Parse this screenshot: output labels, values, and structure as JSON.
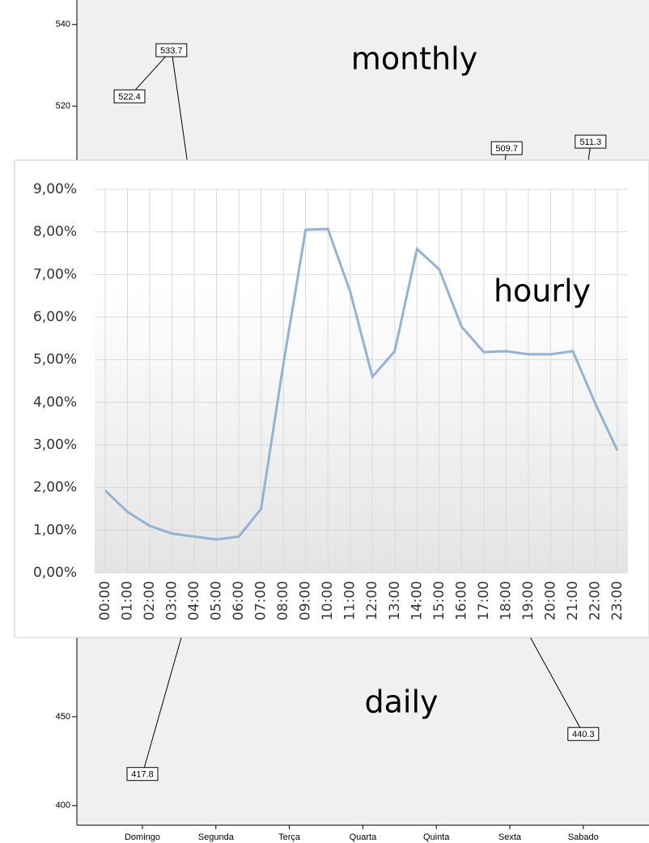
{
  "chart_data": [
    {
      "type": "line",
      "title": "monthly",
      "color": "#000000",
      "values": [
        522.4,
        533.7,
        null,
        null,
        null,
        null,
        null,
        null,
        null,
        509.7,
        null,
        511.3
      ],
      "ylim": [
        480,
        546
      ],
      "yticks": [
        520,
        540
      ]
    },
    {
      "type": "line",
      "title": "hourly",
      "color": "#93b3d3",
      "grid": true,
      "categories": [
        "00:00",
        "01:00",
        "02:00",
        "03:00",
        "04:00",
        "05:00",
        "06:00",
        "07:00",
        "08:00",
        "09:00",
        "10:00",
        "11:00",
        "12:00",
        "13:00",
        "14:00",
        "15:00",
        "16:00",
        "17:00",
        "18:00",
        "19:00",
        "20:00",
        "21:00",
        "22:00",
        "23:00"
      ],
      "values": [
        1.93,
        1.43,
        1.1,
        0.92,
        0.85,
        0.78,
        0.85,
        1.5,
        4.9,
        8.05,
        8.07,
        6.6,
        4.6,
        5.2,
        7.6,
        7.12,
        5.78,
        5.18,
        5.2,
        5.13,
        5.13,
        5.2,
        3.98,
        2.87
      ],
      "ylim": [
        0,
        9
      ],
      "yticks": [
        {
          "value": 0,
          "label": "0,00%"
        },
        {
          "value": 1,
          "label": "1,00%"
        },
        {
          "value": 2,
          "label": "2,00%"
        },
        {
          "value": 3,
          "label": "3,00%"
        },
        {
          "value": 4,
          "label": "4,00%"
        },
        {
          "value": 5,
          "label": "5,00%"
        },
        {
          "value": 6,
          "label": "6,00%"
        },
        {
          "value": 7,
          "label": "7,00%"
        },
        {
          "value": 8,
          "label": "8,00%"
        },
        {
          "value": 9,
          "label": "9,00%"
        }
      ]
    },
    {
      "type": "line",
      "title": "daily",
      "color": "#000000",
      "categories": [
        "Domingo",
        "Segunda",
        "Terça",
        "Quarta",
        "Quinta",
        "Sexta",
        "Sabado"
      ],
      "values": [
        417.8,
        null,
        null,
        null,
        null,
        null,
        440.3
      ],
      "ylim": [
        389,
        500
      ],
      "yticks": [
        400,
        450
      ]
    }
  ]
}
